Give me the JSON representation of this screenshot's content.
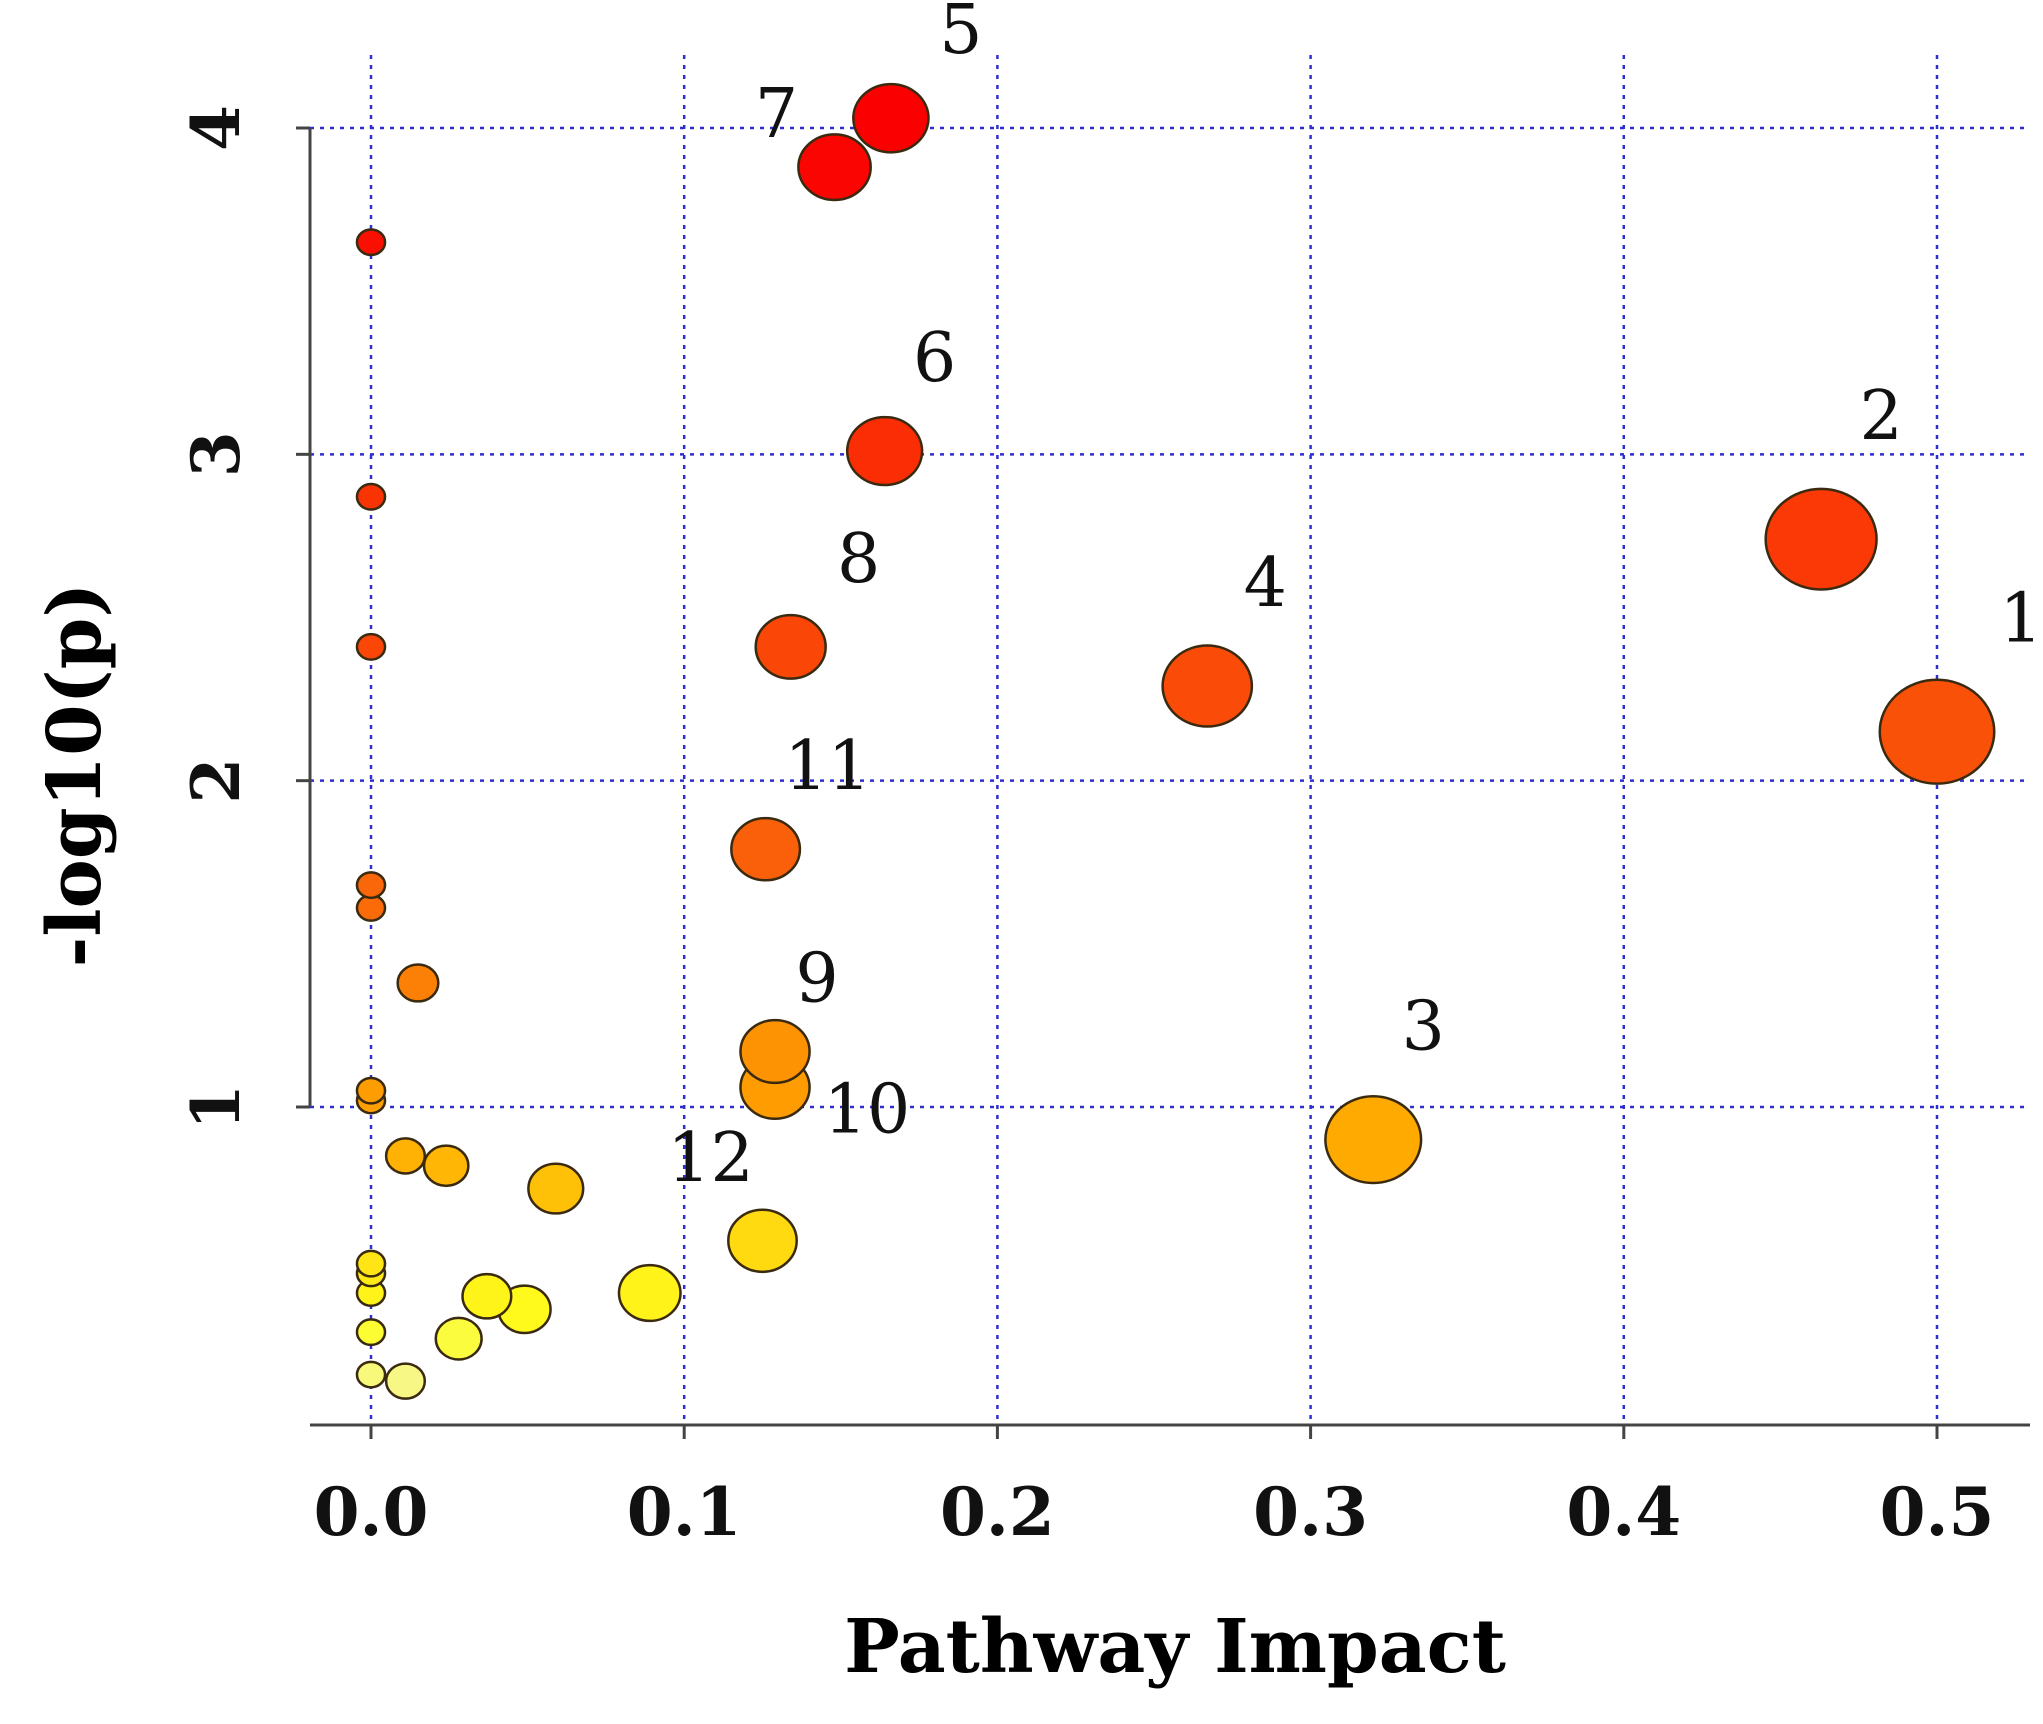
{
  "chart_data": {
    "type": "scatter",
    "xlabel": "Pathway Impact",
    "ylabel": "-log10(p)",
    "xlim": [
      -0.025,
      0.52
    ],
    "ylim": [
      -0.1,
      4.1
    ],
    "x_ticks": [
      0.0,
      0.1,
      0.2,
      0.3,
      0.4,
      0.5
    ],
    "x_tick_labels": [
      "0.0",
      "0.1",
      "0.2",
      "0.3",
      "0.4",
      "0.5"
    ],
    "y_ticks": [
      1,
      2,
      3,
      4
    ],
    "y_tick_labels": [
      "1",
      "2",
      "3",
      "4"
    ],
    "grid": true,
    "color_scale": "-log10(p): white → yellow → orange → red",
    "size_encodes": "Pathway Impact",
    "points": [
      {
        "label": "1",
        "x": 0.5,
        "y": 2.15
      },
      {
        "label": "2",
        "x": 0.463,
        "y": 2.74
      },
      {
        "label": "3",
        "x": 0.32,
        "y": 0.9
      },
      {
        "label": "4",
        "x": 0.267,
        "y": 2.29
      },
      {
        "label": "5",
        "x": 0.166,
        "y": 4.03
      },
      {
        "label": "6",
        "x": 0.164,
        "y": 3.01
      },
      {
        "label": "7",
        "x": 0.148,
        "y": 3.88
      },
      {
        "label": "8",
        "x": 0.134,
        "y": 2.41
      },
      {
        "label": "9",
        "x": 0.129,
        "y": 1.17
      },
      {
        "label": "10",
        "x": 0.129,
        "y": 1.06
      },
      {
        "label": "11",
        "x": 0.126,
        "y": 1.79
      },
      {
        "label": "12",
        "x": 0.125,
        "y": 0.59
      },
      {
        "label": "",
        "x": 0.0,
        "y": 3.65
      },
      {
        "label": "",
        "x": 0.0,
        "y": 2.87
      },
      {
        "label": "",
        "x": 0.0,
        "y": 2.41
      },
      {
        "label": "",
        "x": 0.0,
        "y": 1.68
      },
      {
        "label": "",
        "x": 0.0,
        "y": 1.61
      },
      {
        "label": "",
        "x": 0.015,
        "y": 1.38
      },
      {
        "label": "",
        "x": 0.0,
        "y": 1.05
      },
      {
        "label": "",
        "x": 0.0,
        "y": 1.02
      },
      {
        "label": "",
        "x": 0.011,
        "y": 0.85
      },
      {
        "label": "",
        "x": 0.024,
        "y": 0.82
      },
      {
        "label": "",
        "x": 0.059,
        "y": 0.75
      },
      {
        "label": "",
        "x": 0.0,
        "y": 0.52
      },
      {
        "label": "",
        "x": 0.0,
        "y": 0.49
      },
      {
        "label": "",
        "x": 0.0,
        "y": 0.43
      },
      {
        "label": "",
        "x": 0.089,
        "y": 0.43
      },
      {
        "label": "",
        "x": 0.037,
        "y": 0.42
      },
      {
        "label": "",
        "x": 0.049,
        "y": 0.38
      },
      {
        "label": "",
        "x": 0.0,
        "y": 0.31
      },
      {
        "label": "",
        "x": 0.028,
        "y": 0.29
      },
      {
        "label": "",
        "x": 0.0,
        "y": 0.18
      },
      {
        "label": "",
        "x": 0.011,
        "y": 0.16
      }
    ]
  }
}
